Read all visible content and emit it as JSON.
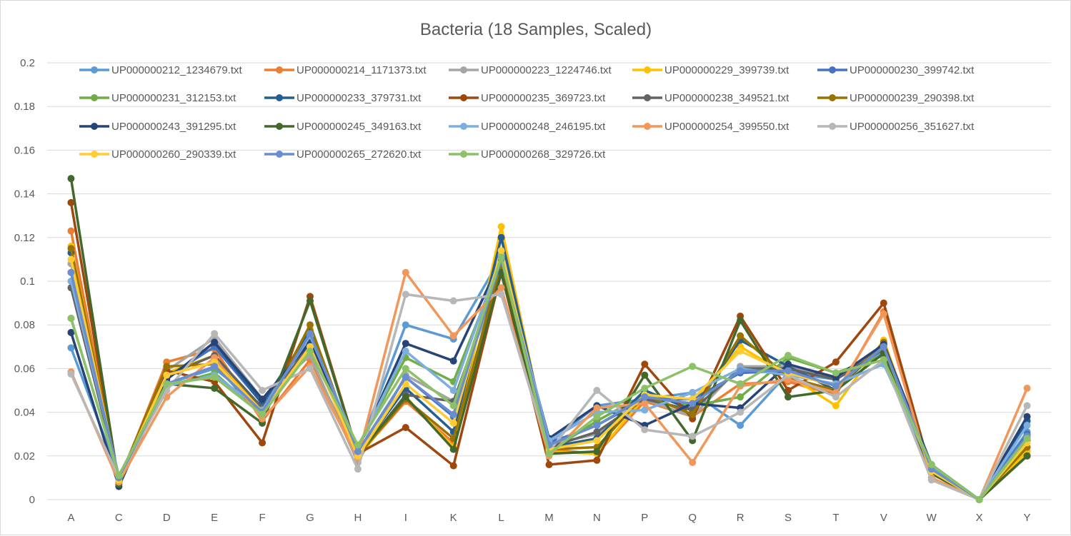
{
  "chart_data": {
    "type": "line",
    "title": "Bacteria (18 Samples, Scaled)",
    "xlabel": "",
    "ylabel": "",
    "ylim": [
      0,
      0.2
    ],
    "y_ticks": [
      "0",
      "0.02",
      "0.04",
      "0.06",
      "0.08",
      "0.1",
      "0.12",
      "0.14",
      "0.16",
      "0.18",
      "0.2"
    ],
    "categories": [
      "A",
      "C",
      "D",
      "E",
      "F",
      "G",
      "H",
      "I",
      "K",
      "L",
      "M",
      "N",
      "P",
      "Q",
      "R",
      "S",
      "T",
      "V",
      "W",
      "X",
      "Y"
    ],
    "grid": true,
    "legend_position": "top",
    "series": [
      {
        "name": "UP000000212_1234679.txt",
        "color": "#5b9bd5",
        "values": [
          0.0695,
          0.011,
          0.053,
          0.06,
          0.043,
          0.074,
          0.022,
          0.08,
          0.0735,
          0.111,
          0.026,
          0.043,
          0.046,
          0.049,
          0.034,
          0.058,
          0.055,
          0.068,
          0.015,
          0.0,
          0.031
        ]
      },
      {
        "name": "UP000000214_1171373.txt",
        "color": "#ed7d31",
        "values": [
          0.123,
          0.008,
          0.063,
          0.069,
          0.036,
          0.064,
          0.02,
          0.045,
          0.026,
          0.107,
          0.023,
          0.021,
          0.045,
          0.038,
          0.053,
          0.054,
          0.048,
          0.086,
          0.012,
          0.0,
          0.024
        ]
      },
      {
        "name": "UP000000223_1224746.txt",
        "color": "#a5a5a5",
        "values": [
          0.108,
          0.009,
          0.059,
          0.074,
          0.046,
          0.066,
          0.017,
          0.057,
          0.045,
          0.103,
          0.025,
          0.03,
          0.046,
          0.038,
          0.061,
          0.061,
          0.055,
          0.07,
          0.013,
          0.0,
          0.028
        ]
      },
      {
        "name": "UP000000229_399739.txt",
        "color": "#ffc000",
        "values": [
          0.116,
          0.009,
          0.058,
          0.066,
          0.04,
          0.078,
          0.019,
          0.047,
          0.024,
          0.125,
          0.022,
          0.021,
          0.047,
          0.044,
          0.07,
          0.057,
          0.043,
          0.073,
          0.012,
          0.0,
          0.022
        ]
      },
      {
        "name": "UP000000230_399742.txt",
        "color": "#4472c4",
        "values": [
          0.104,
          0.01,
          0.056,
          0.07,
          0.044,
          0.076,
          0.022,
          0.056,
          0.038,
          0.113,
          0.026,
          0.034,
          0.046,
          0.046,
          0.058,
          0.059,
          0.052,
          0.07,
          0.014,
          0.0,
          0.03
        ]
      },
      {
        "name": "UP000000231_312153.txt",
        "color": "#70ad47",
        "values": [
          0.083,
          0.011,
          0.052,
          0.058,
          0.039,
          0.068,
          0.024,
          0.065,
          0.054,
          0.109,
          0.022,
          0.036,
          0.048,
          0.043,
          0.047,
          0.065,
          0.058,
          0.066,
          0.016,
          0.0,
          0.029
        ]
      },
      {
        "name": "UP000000233_379731.txt",
        "color": "#255e91",
        "values": [
          0.113,
          0.009,
          0.055,
          0.072,
          0.044,
          0.077,
          0.021,
          0.051,
          0.031,
          0.12,
          0.024,
          0.028,
          0.05,
          0.041,
          0.073,
          0.061,
          0.05,
          0.071,
          0.013,
          0.0,
          0.036
        ]
      },
      {
        "name": "UP000000235_369723.txt",
        "color": "#9e480e",
        "values": [
          0.136,
          0.008,
          0.059,
          0.054,
          0.026,
          0.093,
          0.021,
          0.033,
          0.0155,
          0.104,
          0.016,
          0.018,
          0.062,
          0.037,
          0.084,
          0.05,
          0.063,
          0.09,
          0.012,
          0.0,
          0.02
        ]
      },
      {
        "name": "UP000000238_349521.txt",
        "color": "#636363",
        "values": [
          0.097,
          0.01,
          0.057,
          0.066,
          0.042,
          0.071,
          0.02,
          0.048,
          0.045,
          0.106,
          0.024,
          0.031,
          0.046,
          0.041,
          0.06,
          0.06,
          0.055,
          0.069,
          0.014,
          0.0,
          0.027
        ]
      },
      {
        "name": "UP000000239_290398.txt",
        "color": "#997300",
        "values": [
          0.115,
          0.009,
          0.061,
          0.062,
          0.038,
          0.08,
          0.02,
          0.046,
          0.028,
          0.108,
          0.023,
          0.024,
          0.048,
          0.039,
          0.075,
          0.056,
          0.05,
          0.072,
          0.013,
          0.0,
          0.024
        ]
      },
      {
        "name": "UP000000243_391295.txt",
        "color": "#264478",
        "values": [
          0.0765,
          0.006,
          0.055,
          0.072,
          0.046,
          0.072,
          0.023,
          0.0715,
          0.0635,
          0.11,
          0.028,
          0.043,
          0.034,
          0.044,
          0.042,
          0.062,
          0.056,
          0.071,
          0.016,
          0.0,
          0.038
        ]
      },
      {
        "name": "UP000000245_349163.txt",
        "color": "#43682b",
        "values": [
          0.147,
          0.007,
          0.053,
          0.051,
          0.035,
          0.091,
          0.021,
          0.047,
          0.023,
          0.104,
          0.021,
          0.022,
          0.057,
          0.027,
          0.082,
          0.047,
          0.05,
          0.067,
          0.012,
          0.0,
          0.02
        ]
      },
      {
        "name": "UP000000248_246195.txt",
        "color": "#7cafdd",
        "values": [
          0.1,
          0.011,
          0.052,
          0.057,
          0.041,
          0.075,
          0.024,
          0.068,
          0.05,
          0.112,
          0.027,
          0.04,
          0.041,
          0.049,
          0.06,
          0.057,
          0.053,
          0.062,
          0.015,
          0.0,
          0.034
        ]
      },
      {
        "name": "UP000000254_399550.txt",
        "color": "#f1975a",
        "values": [
          0.0585,
          0.008,
          0.047,
          0.065,
          0.037,
          0.061,
          0.019,
          0.104,
          0.075,
          0.097,
          0.02,
          0.042,
          0.044,
          0.017,
          0.052,
          0.055,
          0.049,
          0.085,
          0.01,
          0.0,
          0.051
        ]
      },
      {
        "name": "UP000000256_351627.txt",
        "color": "#b7b7b7",
        "values": [
          0.0575,
          0.01,
          0.05,
          0.076,
          0.05,
          0.06,
          0.014,
          0.094,
          0.091,
          0.094,
          0.022,
          0.05,
          0.032,
          0.029,
          0.04,
          0.057,
          0.047,
          0.064,
          0.009,
          0.0,
          0.043
        ]
      },
      {
        "name": "UP000000260_290339.txt",
        "color": "#ffcd33",
        "values": [
          0.11,
          0.009,
          0.057,
          0.063,
          0.04,
          0.07,
          0.02,
          0.053,
          0.035,
          0.114,
          0.023,
          0.027,
          0.048,
          0.046,
          0.068,
          0.058,
          0.052,
          0.07,
          0.013,
          0.0,
          0.026
        ]
      },
      {
        "name": "UP000000265_272620.txt",
        "color": "#698ed0",
        "values": [
          0.104,
          0.01,
          0.053,
          0.061,
          0.04,
          0.076,
          0.022,
          0.056,
          0.039,
          0.11,
          0.025,
          0.034,
          0.047,
          0.044,
          0.059,
          0.059,
          0.052,
          0.07,
          0.014,
          0.0,
          0.029
        ]
      },
      {
        "name": "UP000000268_329726.txt",
        "color": "#8cc168",
        "values": [
          0.083,
          0.011,
          0.053,
          0.056,
          0.039,
          0.068,
          0.025,
          0.06,
          0.043,
          0.111,
          0.021,
          0.038,
          0.051,
          0.061,
          0.053,
          0.066,
          0.058,
          0.064,
          0.016,
          0.0,
          0.028
        ]
      }
    ]
  }
}
